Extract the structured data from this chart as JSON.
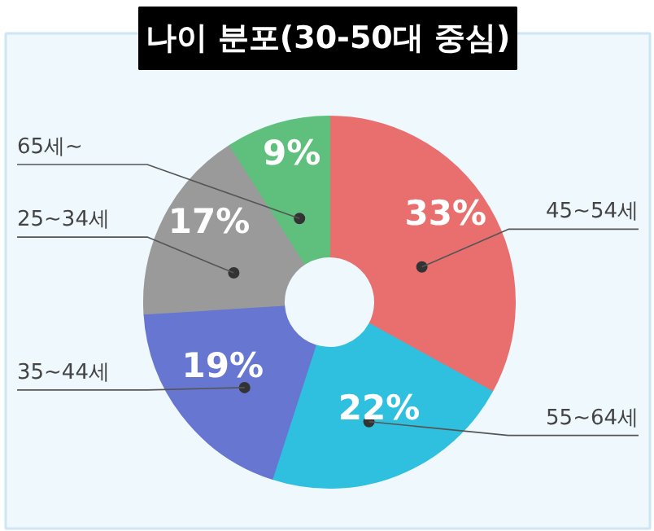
{
  "chart_data": {
    "type": "donut",
    "title": "나이 분포(30-50대 중심)",
    "categories": [
      "45~54세",
      "55~64세",
      "35~44세",
      "25~34세",
      "65세~"
    ],
    "values": [
      33,
      22,
      19,
      17,
      9
    ],
    "colors": [
      "#e96f6f",
      "#2fc0df",
      "#6676d1",
      "#9a9a9a",
      "#5ec07c"
    ],
    "value_labels": [
      "33%",
      "22%",
      "19%",
      "17%",
      "9%"
    ]
  }
}
